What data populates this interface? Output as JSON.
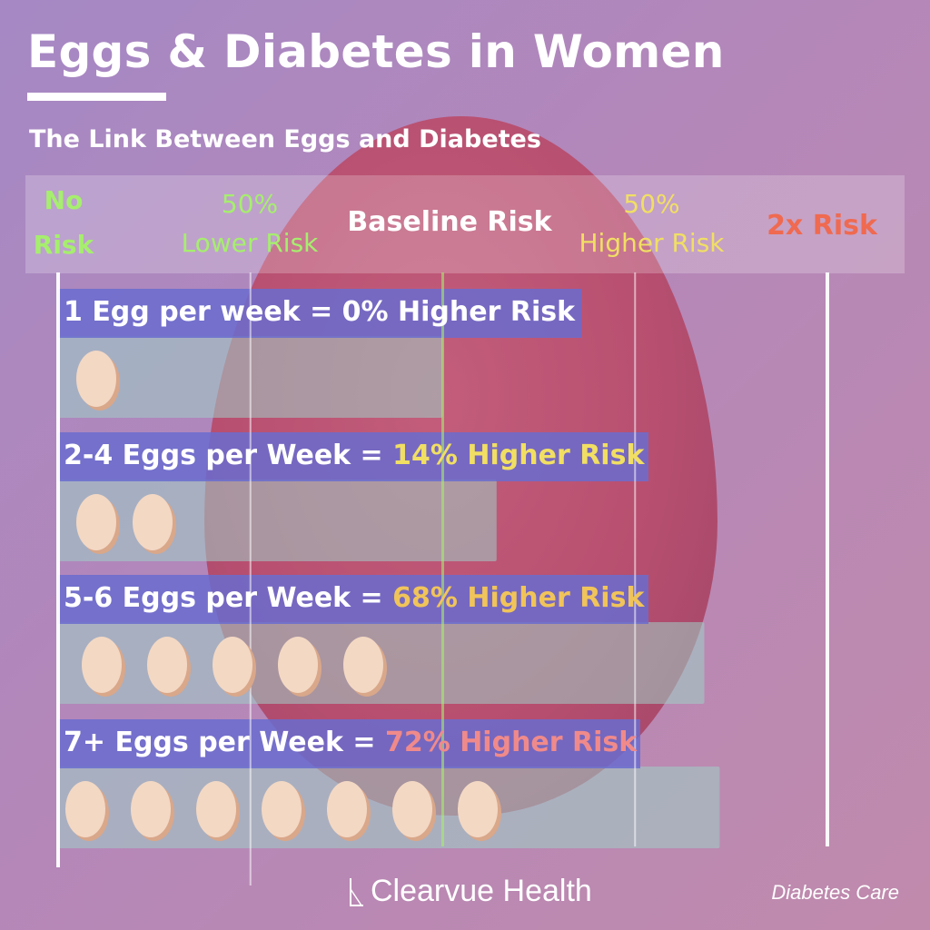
{
  "title": "Eggs & Diabetes in Women",
  "subtitle": "The Link Between Eggs and Diabetes",
  "branding": {
    "logo_text": "Clearvue Health",
    "source": "Diabetes Care"
  },
  "colors": {
    "green": "#a6ee6e",
    "yellow": "#f1df63",
    "pink": "#f08a8a",
    "red": "#ef6a50",
    "bar_fill": "#9fd0c6",
    "label_band": "#6a6ccf",
    "egg": "#f3d8c4",
    "egg_shadow": "#d9a78a"
  },
  "chart_data": {
    "type": "bar",
    "orientation": "horizontal",
    "title": "Eggs & Diabetes in Women",
    "subtitle": "The Link Between Eggs and Diabetes",
    "scale": [
      {
        "label_lines": [
          "No",
          "Risk"
        ],
        "value": 0,
        "color": "#a6ee6e"
      },
      {
        "label_lines": [
          "50%",
          "Lower Risk"
        ],
        "value": 0.5,
        "color": "#a6ee6e"
      },
      {
        "label_lines": [
          "Baseline Risk"
        ],
        "value": 1.0,
        "color": "#ffffff"
      },
      {
        "label_lines": [
          "50%",
          "Higher Risk"
        ],
        "value": 1.5,
        "color": "#f1df63"
      },
      {
        "label_lines": [
          "2x Risk"
        ],
        "value": 2.0,
        "color": "#ef6a50"
      }
    ],
    "xlim": [
      0,
      2
    ],
    "grid": true,
    "rows": [
      {
        "label_prefix": "1 Egg per week = ",
        "label_highlight": "0% Higher Risk",
        "highlight_color": "#ffffff",
        "eggs": 1,
        "value": 1.0
      },
      {
        "label_prefix": "2-4 Eggs per Week = ",
        "label_highlight": "14% Higher Risk",
        "highlight_color": "#f1df63",
        "eggs": 2,
        "value": 1.14
      },
      {
        "label_prefix": "5-6 Eggs per Week = ",
        "label_highlight": "68% Higher Risk",
        "highlight_color": "#f1c45a",
        "eggs": 5,
        "value": 1.68
      },
      {
        "label_prefix": "7+ Eggs per Week = ",
        "label_highlight": "72% Higher Risk",
        "highlight_color": "#f08a8a",
        "eggs": 7,
        "value": 1.72
      }
    ]
  }
}
